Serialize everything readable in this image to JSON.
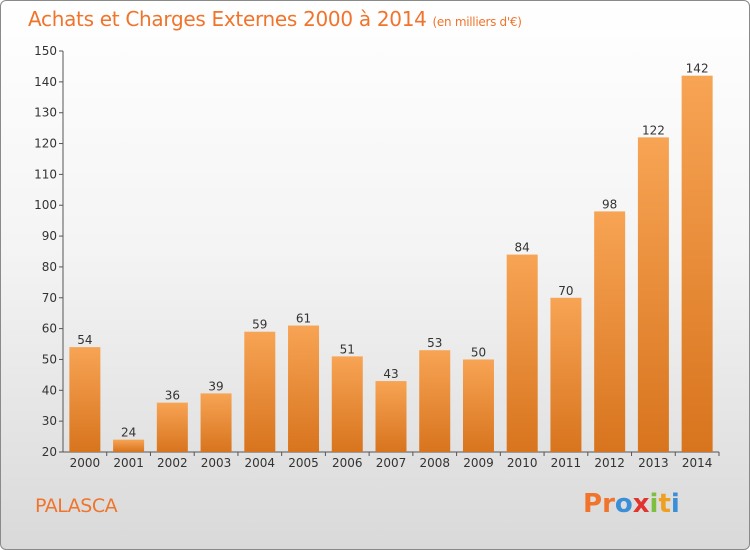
{
  "header": {
    "title": "Achats et Charges Externes 2000 à 2014",
    "unit": "(en milliers d'€)"
  },
  "footer": {
    "place": "PALASCA",
    "brand": "Proxiti",
    "brand_letters": [
      {
        "ch": "P",
        "color": "#f0742c"
      },
      {
        "ch": "r",
        "color": "#f0742c"
      },
      {
        "ch": "o",
        "color": "#3a8fd8"
      },
      {
        "ch": "x",
        "color": "#e2342f"
      },
      {
        "ch": "i",
        "color": "#7fbf3f"
      },
      {
        "ch": "t",
        "color": "#f0a020"
      },
      {
        "ch": "i",
        "color": "#3a8fd8"
      }
    ]
  },
  "colors": {
    "accent": "#f0742c",
    "bar_top": "#f7a454",
    "bar_bottom": "#d8741e"
  },
  "chart_data": {
    "type": "bar",
    "title": "Achats et Charges Externes 2000 à 2014",
    "subtitle": "(en milliers d'€)",
    "categories": [
      "2000",
      "2001",
      "2002",
      "2003",
      "2004",
      "2005",
      "2006",
      "2007",
      "2008",
      "2009",
      "2010",
      "2011",
      "2012",
      "2013",
      "2014"
    ],
    "values": [
      54,
      24,
      36,
      39,
      59,
      61,
      51,
      43,
      53,
      50,
      84,
      70,
      98,
      122,
      142
    ],
    "ylim": [
      20,
      150
    ],
    "yticks": [
      20,
      30,
      40,
      50,
      60,
      70,
      80,
      90,
      100,
      110,
      120,
      130,
      140,
      150
    ],
    "grid": false,
    "data_labels": true
  }
}
